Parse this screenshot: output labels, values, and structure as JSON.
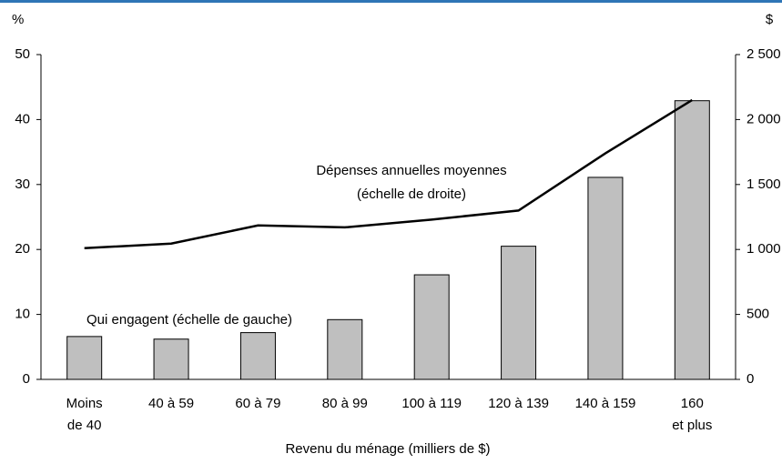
{
  "chart_data": {
    "type": "bar_line",
    "y_label": "%",
    "y2_label": "$",
    "x_label": "Revenu du ménage (milliers de $)",
    "categories": [
      [
        "Moins",
        "de 40"
      ],
      [
        "40 à 59"
      ],
      [
        "60 à 79"
      ],
      [
        "80 à 99"
      ],
      [
        "100 à 119"
      ],
      [
        "120 à 139"
      ],
      [
        "140 à 159"
      ],
      [
        "160",
        "et plus"
      ]
    ],
    "series": [
      {
        "name": "Qui engagent (échelle de gauche)",
        "type": "bar",
        "color": "#bfbfbf",
        "values": [
          6.6,
          6.2,
          7.2,
          9.2,
          16.1,
          20.5,
          31.1,
          42.9
        ]
      },
      {
        "name": [
          "Dépenses annuelles moyennes",
          "(échelle de droite)"
        ],
        "type": "line",
        "axis": "y2",
        "color": "#000000",
        "values": [
          1010,
          1045,
          1185,
          1170,
          1230,
          1300,
          1740,
          2150
        ]
      }
    ],
    "ylim": [
      0,
      50
    ],
    "yticks": [
      0,
      10,
      20,
      30,
      40,
      50
    ],
    "y2lim": [
      0,
      2500
    ],
    "y2ticks": [
      0,
      500,
      {
        "value": 1000,
        "label": "1 000"
      },
      {
        "value": 1500,
        "label": "1 500"
      },
      {
        "value": 2000,
        "label": "2 000"
      },
      {
        "value": 2500,
        "label": "2 500"
      }
    ]
  }
}
